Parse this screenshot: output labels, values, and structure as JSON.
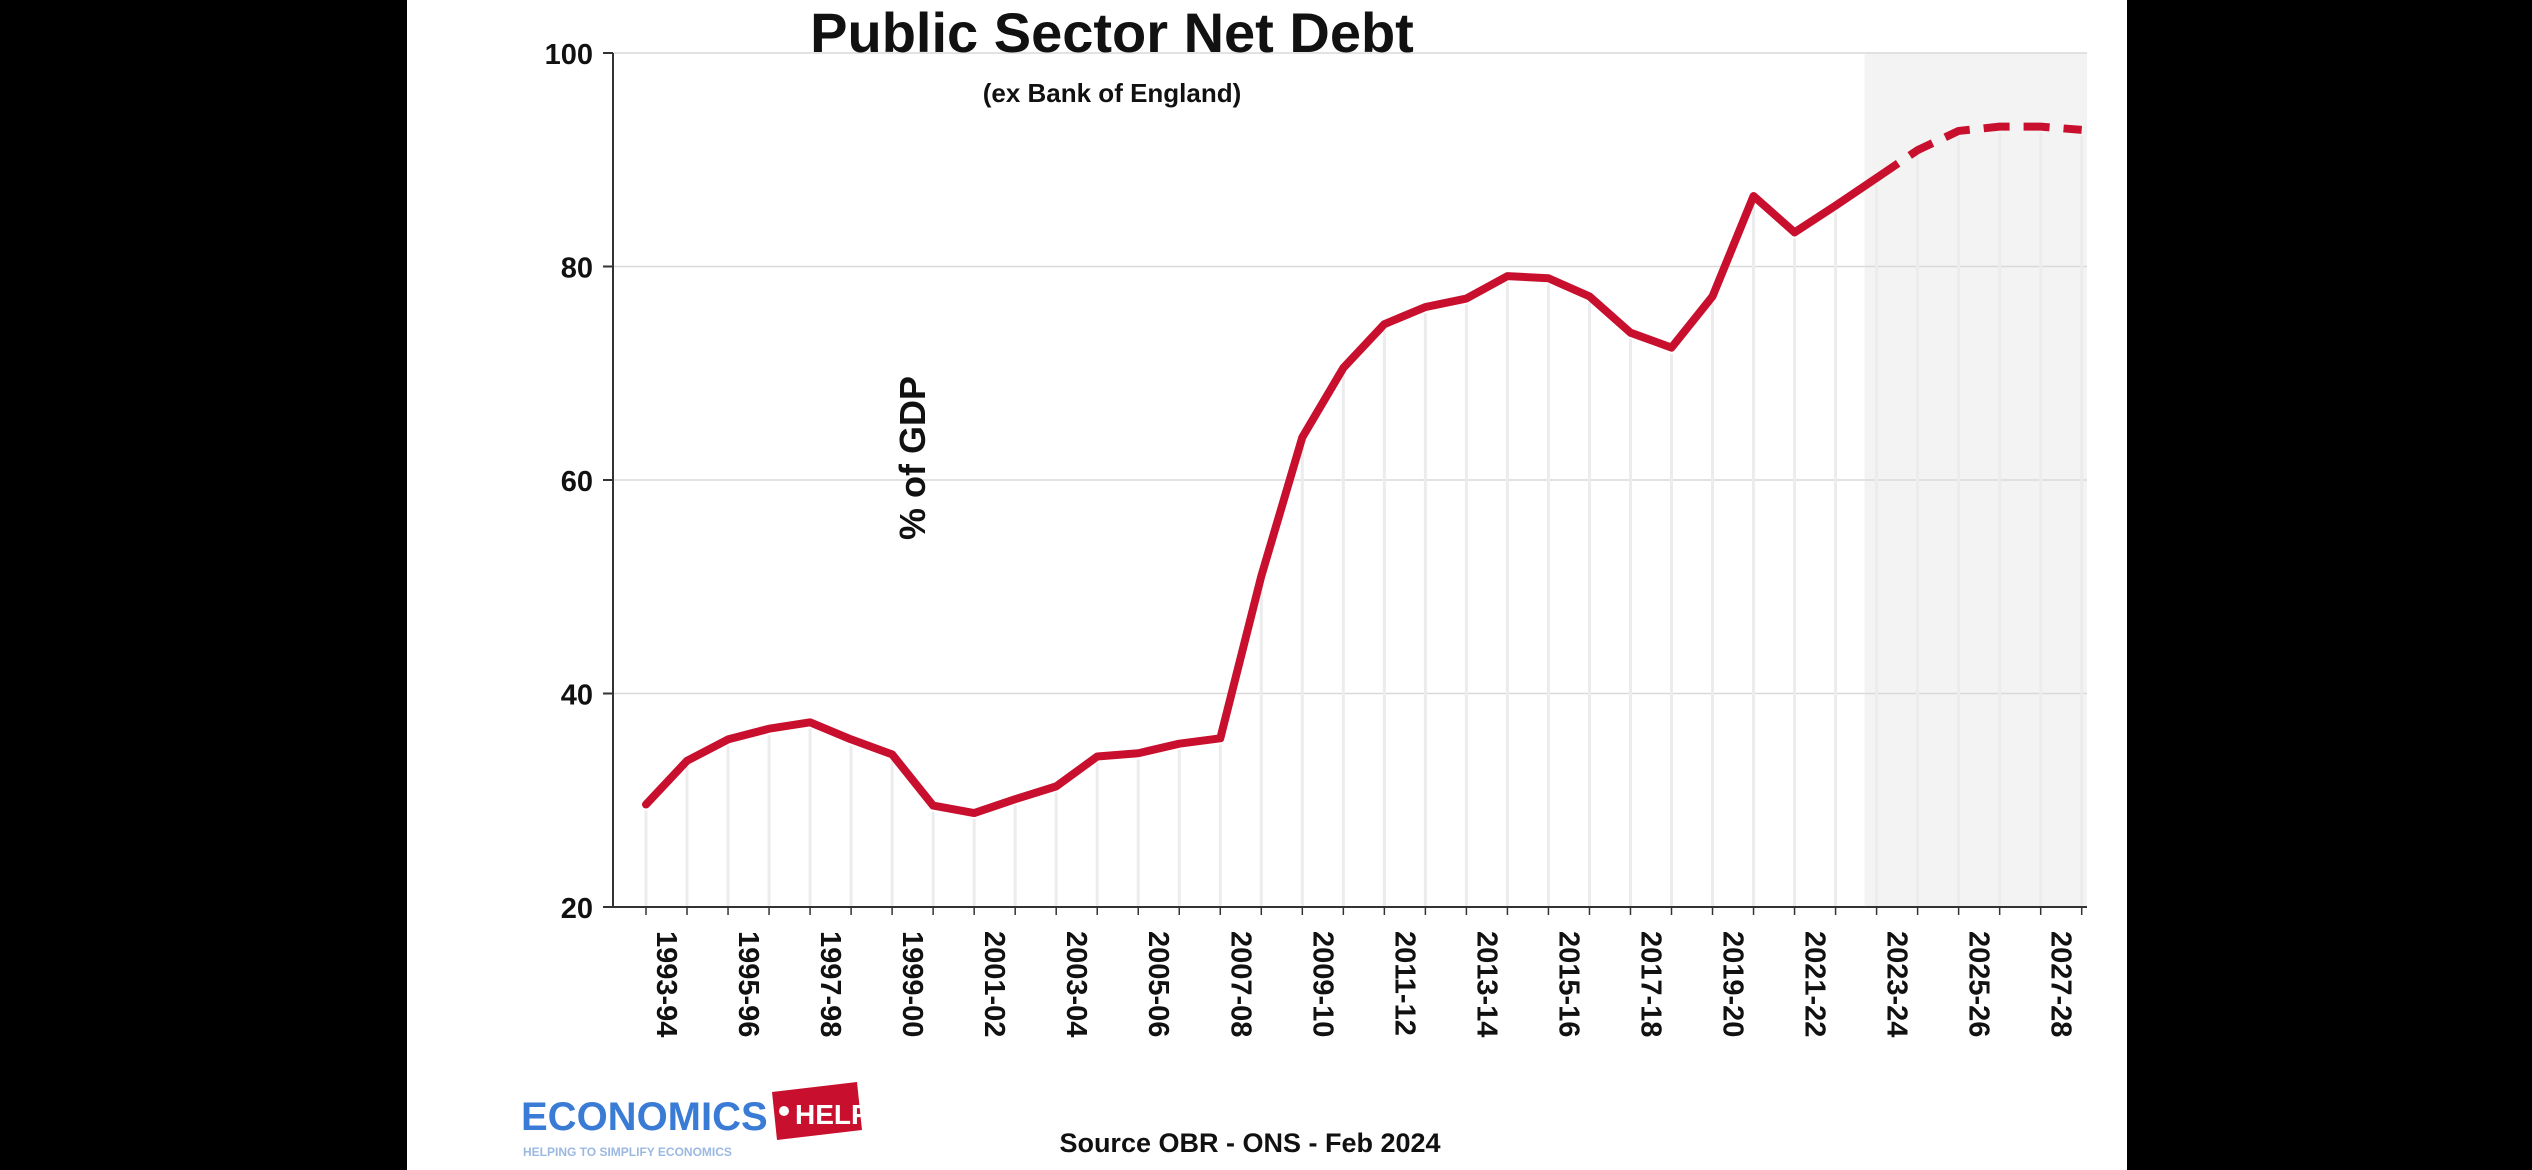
{
  "chart_data": {
    "type": "line",
    "title": "Public Sector Net Debt",
    "subtitle": "(ex Bank of England)",
    "xlabel": "",
    "ylabel": "% of GDP",
    "ylim": [
      20,
      100
    ],
    "yticks": [
      20,
      40,
      60,
      80,
      100
    ],
    "grid": true,
    "legend": "none",
    "x": [
      "1993-94",
      "1994-95",
      "1995-96",
      "1996-97",
      "1997-98",
      "1998-99",
      "1999-00",
      "2000-01",
      "2001-02",
      "2002-03",
      "2003-04",
      "2004-05",
      "2005-06",
      "2006-07",
      "2007-08",
      "2008-09",
      "2009-10",
      "2010-11",
      "2011-12",
      "2012-13",
      "2013-14",
      "2014-15",
      "2015-16",
      "2016-17",
      "2017-18",
      "2018-19",
      "2019-20",
      "2020-21",
      "2021-22",
      "2022-23",
      "2023-24",
      "2024-25",
      "2025-26",
      "2026-27",
      "2027-28",
      "2028-29"
    ],
    "x_tick_labels": [
      "1993-94",
      "1995-96",
      "1997-98",
      "1999-00",
      "2001-02",
      "2003-04",
      "2005-06",
      "2007-08",
      "2009-10",
      "2011-12",
      "2013-14",
      "2015-16",
      "2017-18",
      "2019-20",
      "2021-22",
      "2023-24",
      "2025-26",
      "2027-28"
    ],
    "forecast_start": "2023-24",
    "series": [
      {
        "color": "#c8102e",
        "values": [
          29.6,
          33.7,
          35.7,
          36.7,
          37.3,
          35.7,
          34.3,
          29.5,
          28.8,
          30.1,
          31.3,
          34.1,
          34.4,
          35.3,
          35.8,
          51.0,
          64.0,
          70.5,
          74.6,
          76.2,
          77.0,
          79.1,
          78.9,
          77.2,
          73.8,
          72.4,
          77.2,
          86.6,
          83.2,
          85.7,
          88.3,
          90.9,
          92.7,
          93.1,
          93.1,
          92.8
        ]
      }
    ],
    "source_note": "Source OBR - ONS - Feb 2024",
    "logo": {
      "name": "ECONOMICS",
      "tag": "HELP",
      "tagline": "HELPING TO SIMPLIFY ECONOMICS",
      "blue": "#3a7bd5",
      "red": "#c8102e"
    }
  }
}
